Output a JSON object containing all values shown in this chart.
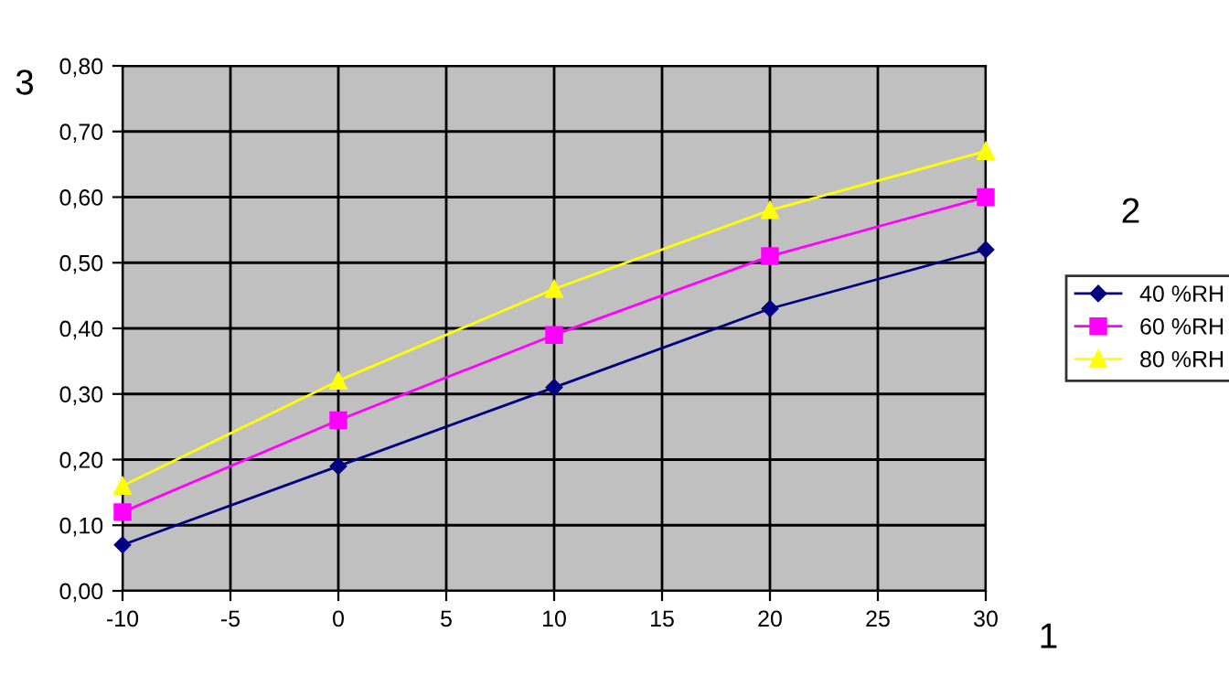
{
  "chart_data": {
    "type": "line",
    "xlabel": "1",
    "ylabel": "3",
    "legend_title": "2",
    "x": [
      -10,
      0,
      10,
      20,
      30
    ],
    "series": [
      {
        "name": "40 %RH",
        "color": "#000080",
        "marker": "diamond",
        "values": [
          0.07,
          0.19,
          0.31,
          0.43,
          0.52
        ]
      },
      {
        "name": "60 %RH",
        "color": "#ff00ff",
        "marker": "square",
        "values": [
          0.12,
          0.26,
          0.39,
          0.51,
          0.6
        ]
      },
      {
        "name": "80 %RH",
        "color": "#ffff00",
        "marker": "triangle",
        "values": [
          0.16,
          0.32,
          0.46,
          0.58,
          0.67
        ]
      }
    ],
    "xlim": [
      -10,
      30
    ],
    "xticks": [
      -10,
      -5,
      0,
      5,
      10,
      15,
      20,
      25,
      30
    ],
    "ylim": [
      0,
      0.8
    ],
    "yticks": [
      {
        "value": 0,
        "label": "0,00"
      },
      {
        "value": 0.1,
        "label": "0,10"
      },
      {
        "value": 0.2,
        "label": "0,20"
      },
      {
        "value": 0.3,
        "label": "0,30"
      },
      {
        "value": 0.4,
        "label": "0,40"
      },
      {
        "value": 0.5,
        "label": "0,50"
      },
      {
        "value": 0.6,
        "label": "0,60"
      },
      {
        "value": 0.7,
        "label": "0,70"
      },
      {
        "value": 0.8,
        "label": "0,80"
      }
    ],
    "grid": true,
    "legend": "right",
    "line_style": "solid"
  }
}
